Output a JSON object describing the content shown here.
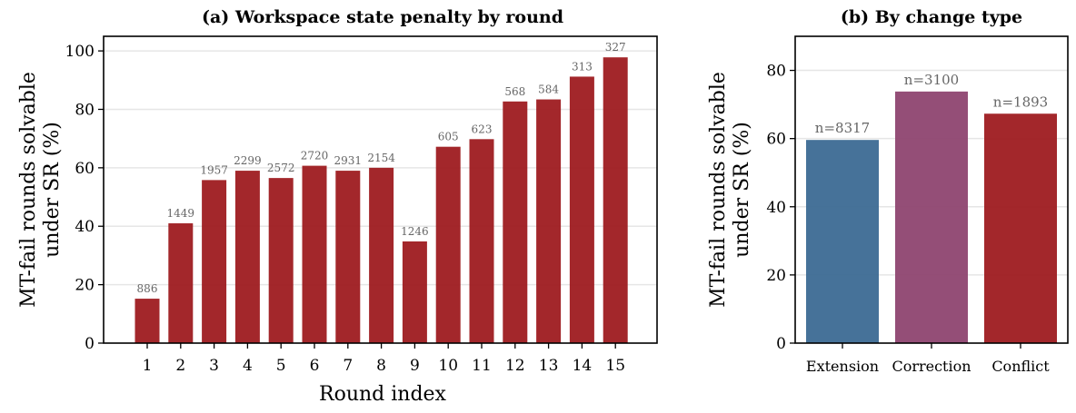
{
  "chart_data": [
    {
      "type": "bar",
      "title": "(a) Workspace state penalty by round",
      "xlabel": "Round index",
      "ylabel": "MT-fail rounds solvable under SR (%)",
      "ylabel_lines": [
        "MT-fail rounds solvable",
        "under SR (%)"
      ],
      "ylim": [
        0,
        105
      ],
      "yticks": [
        0,
        20,
        40,
        60,
        80,
        100
      ],
      "grid": true,
      "categories": [
        "1",
        "2",
        "3",
        "4",
        "5",
        "6",
        "7",
        "8",
        "9",
        "10",
        "11",
        "12",
        "13",
        "14",
        "15"
      ],
      "values": [
        15.2,
        41.0,
        55.8,
        59.0,
        56.5,
        60.7,
        59.0,
        60.0,
        34.8,
        67.2,
        69.8,
        82.7,
        83.4,
        91.2,
        97.8
      ],
      "data_labels": [
        "886",
        "1449",
        "1957",
        "2299",
        "2572",
        "2720",
        "2931",
        "2154",
        "1246",
        "605",
        "623",
        "568",
        "584",
        "313",
        "327"
      ],
      "bar_color": "#9e1b20"
    },
    {
      "type": "bar",
      "title": "(b) By change type",
      "xlabel": "",
      "ylabel": "MT-fail rounds solvable under SR (%)",
      "ylabel_lines": [
        "MT-fail rounds solvable",
        "under SR (%)"
      ],
      "ylim": [
        0,
        90
      ],
      "yticks": [
        0,
        20,
        40,
        60,
        80
      ],
      "grid": true,
      "categories": [
        "Extension",
        "Correction",
        "Conflict"
      ],
      "values": [
        59.6,
        73.8,
        67.3
      ],
      "data_labels": [
        "n=8317",
        "n=3100",
        "n=1893"
      ],
      "bar_colors": [
        "#3c6a93",
        "#8e4570",
        "#9e1b20"
      ]
    }
  ]
}
